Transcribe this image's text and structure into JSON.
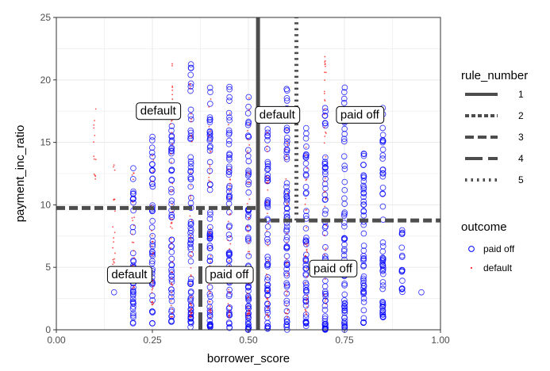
{
  "chart_data": {
    "type": "scatter",
    "xlabel": "borrower_score",
    "ylabel": "payment_inc_ratio",
    "xlim": [
      0,
      1
    ],
    "ylim": [
      0,
      25
    ],
    "x_ticks": [
      0,
      0.25,
      0.5,
      0.75,
      1
    ],
    "x_tick_labels": [
      "0.00",
      "0.25",
      "0.50",
      "0.75",
      "1.00"
    ],
    "y_ticks": [
      0,
      5,
      10,
      15,
      20,
      25
    ],
    "y_tick_labels": [
      "0",
      "5",
      "10",
      "15",
      "20",
      "25"
    ],
    "grid": true,
    "legend_placement": "right",
    "series": [
      {
        "name": "paid off",
        "marker": "open circle",
        "color": "#0000ff",
        "x_values": [
          0.15,
          0.2,
          0.25,
          0.3,
          0.35,
          0.4,
          0.45,
          0.5,
          0.55,
          0.6,
          0.65,
          0.7,
          0.75,
          0.8,
          0.85,
          0.9,
          0.95
        ],
        "y_ranges": [
          [
            3,
            3
          ],
          [
            0.5,
            13
          ],
          [
            0.5,
            15.5
          ],
          [
            0.5,
            16.5
          ],
          [
            0.2,
            21.5
          ],
          [
            0.2,
            20
          ],
          [
            0.1,
            19.5
          ],
          [
            0,
            19.5
          ],
          [
            0,
            18
          ],
          [
            0,
            20
          ],
          [
            0,
            17
          ],
          [
            0,
            18.5
          ],
          [
            0,
            19.5
          ],
          [
            0.5,
            16
          ],
          [
            1,
            18
          ],
          [
            3,
            8
          ],
          [
            3,
            3
          ]
        ]
      },
      {
        "name": "default",
        "marker": "small dot",
        "color": "#ff0000",
        "x_values": [
          0.1,
          0.15,
          0.2,
          0.25,
          0.3,
          0.35,
          0.4,
          0.45,
          0.5,
          0.55,
          0.6,
          0.65,
          0.7
        ],
        "y_ranges": [
          [
            12,
            18
          ],
          [
            5,
            14
          ],
          [
            3,
            13
          ],
          [
            2,
            15
          ],
          [
            1,
            22
          ],
          [
            1,
            20
          ],
          [
            1,
            19
          ],
          [
            1,
            18
          ],
          [
            1,
            19
          ],
          [
            1,
            17
          ],
          [
            1,
            18
          ],
          [
            1,
            16
          ],
          [
            2,
            22
          ]
        ]
      }
    ],
    "rules": [
      {
        "number": "1",
        "orientation": "vertical",
        "x": 0.525,
        "y_range": [
          0,
          25
        ]
      },
      {
        "number": "3",
        "orientation": "horizontal",
        "y": 9.75,
        "x_range": [
          0,
          0.525
        ]
      },
      {
        "number": "3",
        "orientation": "horizontal",
        "y": 8.75,
        "x_range": [
          0.525,
          1
        ]
      },
      {
        "number": "4",
        "orientation": "vertical",
        "x": 0.375,
        "y_range": [
          0,
          9.75
        ]
      },
      {
        "number": "5",
        "orientation": "vertical",
        "x": 0.625,
        "y_range": [
          8.75,
          25
        ]
      }
    ],
    "annotations": [
      {
        "text": "default",
        "x": 0.265,
        "y": 17.5
      },
      {
        "text": "default",
        "x": 0.575,
        "y": 17.2
      },
      {
        "text": "paid off",
        "x": 0.79,
        "y": 17.2
      },
      {
        "text": "default",
        "x": 0.19,
        "y": 4.4
      },
      {
        "text": "paid off",
        "x": 0.45,
        "y": 4.4
      },
      {
        "text": "paid off",
        "x": 0.72,
        "y": 4.9
      }
    ],
    "legend": {
      "rule_title": "rule_number",
      "rule_items": [
        {
          "label": "1",
          "dash": "solid"
        },
        {
          "label": "2",
          "dash": "short-dash"
        },
        {
          "label": "3",
          "dash": "dashed"
        },
        {
          "label": "4",
          "dash": "long-dash"
        },
        {
          "label": "5",
          "dash": "dotted"
        }
      ],
      "outcome_title": "outcome",
      "outcome_items": [
        {
          "label": "paid off",
          "marker": "open circle",
          "color": "#0000ff"
        },
        {
          "label": "default",
          "marker": "small dot",
          "color": "#ff0000"
        }
      ]
    },
    "colors": {
      "panel_background": "#ffffff",
      "grid": "#ebebeb",
      "panel_border": "#333333",
      "rule_line": "#4d4d4d",
      "paid_off": "#0000ff",
      "default": "#ff0000"
    }
  }
}
